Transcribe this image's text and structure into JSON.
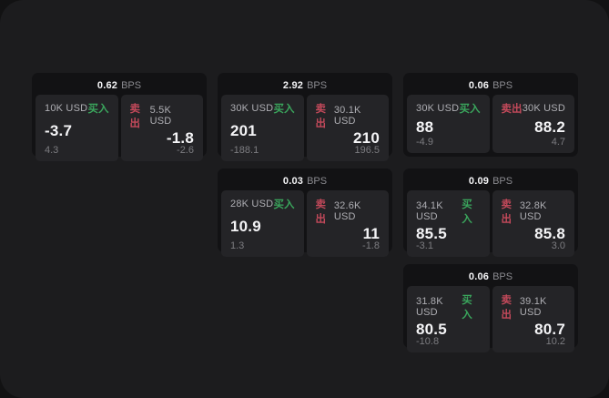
{
  "labels": {
    "buy": "买入",
    "sell": "卖出",
    "bps_suffix": "BPS"
  },
  "colors": {
    "surface": "#1c1c1e",
    "card_background": "#121214",
    "tile_background": "#242427",
    "buy_green": "#3aa55c",
    "sell_red": "#c2495a"
  },
  "cards": [
    {
      "col": 1,
      "row": 1,
      "bps": "0.62",
      "buy": {
        "amount": "10K USD",
        "price": "-3.7",
        "delta": "4.3"
      },
      "sell": {
        "amount": "5.5K USD",
        "price": "-1.8",
        "delta": "-2.6"
      }
    },
    {
      "col": 2,
      "row": 1,
      "bps": "2.92",
      "buy": {
        "amount": "30K USD",
        "price": "201",
        "delta": "-188.1"
      },
      "sell": {
        "amount": "30.1K USD",
        "price": "210",
        "delta": "196.5"
      }
    },
    {
      "col": 3,
      "row": 1,
      "bps": "0.06",
      "buy": {
        "amount": "30K USD",
        "price": "88",
        "delta": "-4.9"
      },
      "sell": {
        "amount": "30K USD",
        "price": "88.2",
        "delta": "4.7"
      }
    },
    {
      "col": 2,
      "row": 2,
      "bps": "0.03",
      "buy": {
        "amount": "28K USD",
        "price": "10.9",
        "delta": "1.3"
      },
      "sell": {
        "amount": "32.6K USD",
        "price": "11",
        "delta": "-1.8"
      }
    },
    {
      "col": 3,
      "row": 2,
      "bps": "0.09",
      "buy": {
        "amount": "34.1K USD",
        "price": "85.5",
        "delta": "-3.1"
      },
      "sell": {
        "amount": "32.8K USD",
        "price": "85.8",
        "delta": "3.0"
      }
    },
    {
      "col": 3,
      "row": 3,
      "bps": "0.06",
      "buy": {
        "amount": "31.8K USD",
        "price": "80.5",
        "delta": "-10.8"
      },
      "sell": {
        "amount": "39.1K USD",
        "price": "80.7",
        "delta": "10.2"
      }
    }
  ]
}
